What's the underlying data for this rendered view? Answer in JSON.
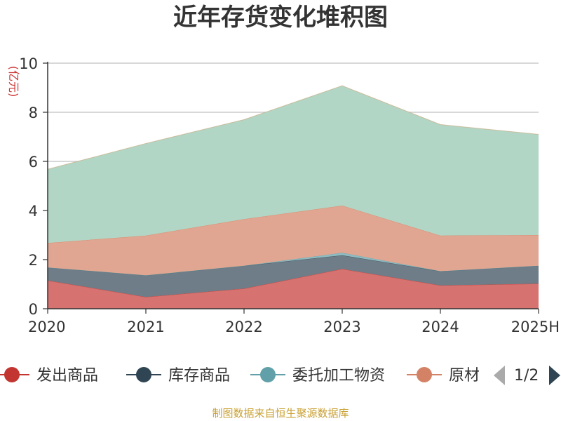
{
  "title": "近年存货变化堆积图",
  "source": "制图数据来自恒生聚源数据库",
  "chart_data": {
    "type": "area",
    "stacked": true,
    "title": "近年存货变化堆积图",
    "ylabel": "(亿元)",
    "xlabel": "",
    "categories": [
      "2020",
      "2021",
      "2022",
      "2023",
      "2024",
      "2025H"
    ],
    "ylim": [
      0,
      10
    ],
    "yticks": [
      0,
      2,
      4,
      6,
      8,
      10
    ],
    "grid": true,
    "legend_position": "bottom",
    "series": [
      {
        "name": "发出商品",
        "values": [
          1.15,
          0.48,
          0.82,
          1.62,
          0.95,
          1.02
        ],
        "color": "#c23531",
        "fill": "#d67370"
      },
      {
        "name": "库存商品",
        "values": [
          0.53,
          0.88,
          0.93,
          0.56,
          0.58,
          0.73
        ],
        "color": "#2f4554",
        "fill": "#6e7d88"
      },
      {
        "name": "委托加工物资",
        "values": [
          0.0,
          0.0,
          0.0,
          0.1,
          0.0,
          0.0
        ],
        "color": "#61a0a8",
        "fill": "#90bcc1"
      },
      {
        "name": "原材料",
        "values": [
          1.0,
          1.62,
          1.9,
          1.92,
          1.45,
          1.25
        ],
        "color": "#d48265",
        "fill": "#e0a691"
      },
      {
        "name": "",
        "values": [
          3.0,
          3.75,
          4.05,
          4.88,
          4.52,
          4.1
        ],
        "color": "#c8ad84",
        "fill": "#b2d6c5"
      }
    ]
  },
  "legend": {
    "visible": [
      "发出商品",
      "库存商品",
      "委托加工物资",
      "原材料"
    ],
    "page": "1/2"
  }
}
